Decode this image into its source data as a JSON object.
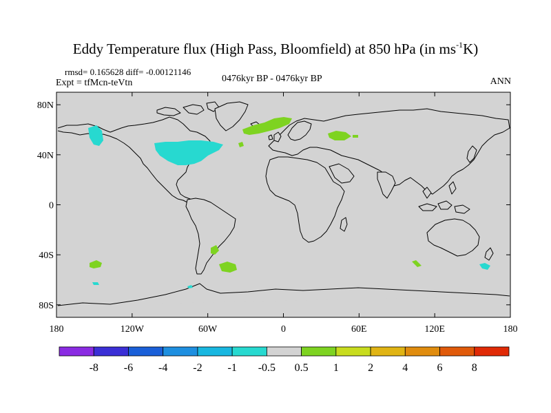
{
  "header": {
    "title_main": "Eddy Temperature flux (High Pass, Bloomfield) at 850 hPa (in ms",
    "title_sup": "-1",
    "title_end": "K)",
    "stats": "rmsd= 0.165628 diff= -0.00121146",
    "expt": "Expt = tfMcn-teVtn",
    "period": "0476kyr BP - 0476kyr BP",
    "season": "ANN"
  },
  "map": {
    "ocean_color": "#d3d3d3",
    "lat_ticks": [
      {
        "lat": 80,
        "label": "80N"
      },
      {
        "lat": 40,
        "label": "40N"
      },
      {
        "lat": 0,
        "label": "0"
      },
      {
        "lat": -40,
        "label": "40S"
      },
      {
        "lat": -80,
        "label": "80S"
      }
    ],
    "lon_ticks": [
      {
        "lon": -180,
        "label": "180"
      },
      {
        "lon": -120,
        "label": "120W"
      },
      {
        "lon": -60,
        "label": "60W"
      },
      {
        "lon": 0,
        "label": "0"
      },
      {
        "lon": 60,
        "label": "60E"
      },
      {
        "lon": 120,
        "label": "120E"
      },
      {
        "lon": 180,
        "label": "180"
      }
    ]
  },
  "colorbar": {
    "colors": [
      "#8a2be2",
      "#3b2fd6",
      "#1a5fd8",
      "#1e8fe0",
      "#19b7e0",
      "#27d9d0",
      "#d3d3d3",
      "#7ed321",
      "#c8dc1e",
      "#e0b414",
      "#e08c0e",
      "#e05a0a",
      "#e02a06"
    ],
    "labels": [
      "-8",
      "-6",
      "-4",
      "-2",
      "-1",
      "-0.5",
      "0.5",
      "1",
      "2",
      "4",
      "6",
      "8"
    ]
  }
}
